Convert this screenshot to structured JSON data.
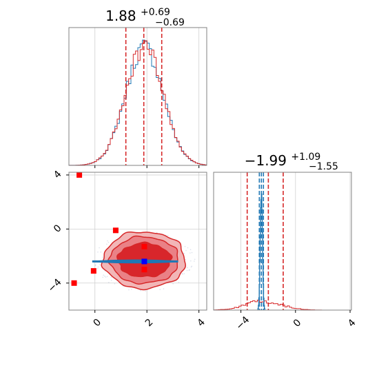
{
  "chart_data": {
    "type": "corner",
    "parameters": [
      {
        "title": {
          "median": "1.88",
          "upper": "+0.69",
          "lower": "−0.69"
        },
        "hist_range": [
          -1.0,
          4.3
        ],
        "quantile_lines": [
          1.19,
          1.88,
          2.57
        ],
        "hist_center": 1.9,
        "hist_sigma": 0.72
      },
      {
        "title": {
          "median": "−1.99",
          "upper": "+1.09",
          "lower": "−1.55"
        },
        "hist_range": [
          -6.0,
          4.1
        ],
        "quantile_lines": [
          -3.54,
          -1.99,
          -0.9
        ],
        "blue_quantile_lines": [
          -2.65,
          -2.5,
          -2.35
        ],
        "blue_center": -2.5,
        "blue_sigma": 0.08,
        "red_center": -2.3,
        "red_sigma": 1.3
      }
    ],
    "scatter": {
      "xlim": [
        -1.0,
        4.3
      ],
      "ylim": [
        -6.0,
        4.2
      ],
      "blue_marker": [
        1.9,
        -2.4
      ],
      "red_markers": [
        [
          -0.6,
          4.0
        ],
        [
          0.8,
          -0.1
        ],
        [
          1.9,
          -1.3
        ],
        [
          1.9,
          -3.0
        ],
        [
          -0.05,
          -3.1
        ],
        [
          -0.8,
          -4.0
        ]
      ],
      "blue_band_y": -2.4,
      "blue_band_x": [
        -0.1,
        3.2
      ]
    },
    "tick_labels": {
      "scatter_y": [
        "4",
        "0",
        "−4"
      ],
      "scatter_x": [
        "0",
        "2",
        "4"
      ],
      "right_x": [
        "−4",
        "0",
        "4"
      ]
    },
    "series": [
      {
        "color": "#1f77b4"
      },
      {
        "color": "#d62728"
      }
    ],
    "grid": true
  }
}
